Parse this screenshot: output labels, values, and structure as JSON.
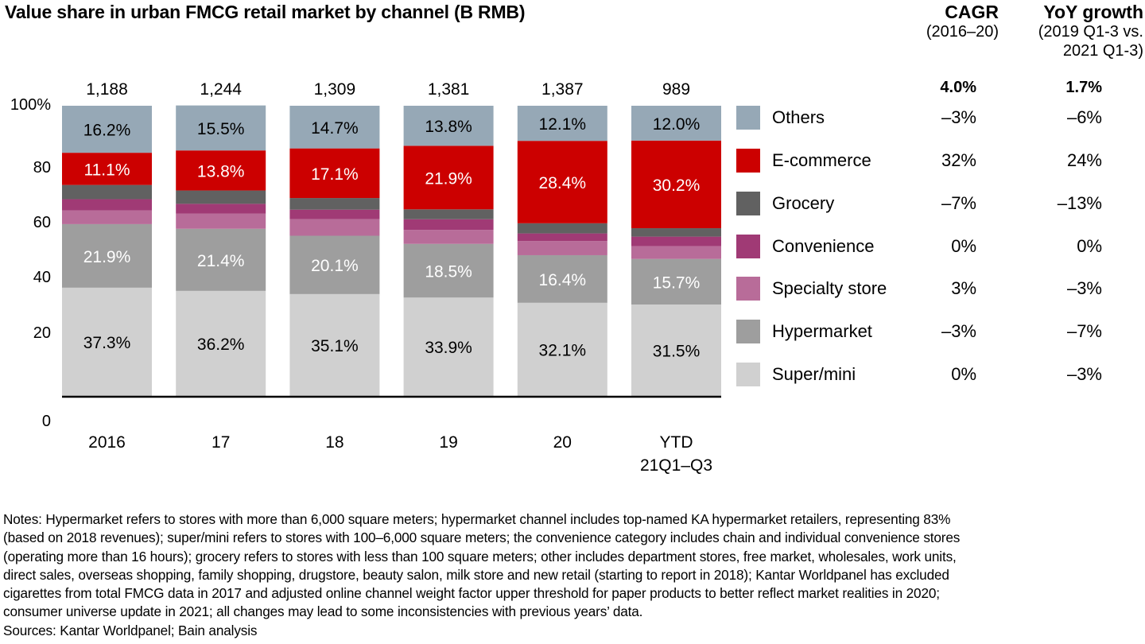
{
  "chart_data": {
    "type": "bar",
    "stacked": true,
    "title": "Value share in urban FMCG retail market by channel (B RMB)",
    "xlabel": "",
    "ylabel": "",
    "ylim": [
      0,
      100
    ],
    "y_ticks": [
      "0",
      "20",
      "40",
      "60",
      "80",
      "100%"
    ],
    "y_tick_values": [
      0,
      20,
      40,
      60,
      80,
      100
    ],
    "grid": false,
    "categories": [
      "2016",
      "17",
      "18",
      "19",
      "20",
      "YTD\n21Q1–Q3"
    ],
    "totals": [
      "1,188",
      "1,244",
      "1,309",
      "1,381",
      "1,387",
      "989"
    ],
    "series": [
      {
        "name": "Super/mini",
        "color": "#D0D0D0",
        "label_color": "#000000",
        "values": [
          37.3,
          36.2,
          35.1,
          33.9,
          32.1,
          31.5
        ],
        "labels": [
          "37.3%",
          "36.2%",
          "35.1%",
          "33.9%",
          "32.1%",
          "31.5%"
        ]
      },
      {
        "name": "Hypermarket",
        "color": "#9E9E9E",
        "label_color": "#FFFFFF",
        "values": [
          21.9,
          21.4,
          20.1,
          18.5,
          16.4,
          15.7
        ],
        "labels": [
          "21.9%",
          "21.4%",
          "20.1%",
          "18.5%",
          "16.4%",
          "15.7%"
        ]
      },
      {
        "name": "Specialty store",
        "color": "#B86C99",
        "label_color": "#FFFFFF",
        "values": [
          4.7,
          5.2,
          5.7,
          4.8,
          4.9,
          4.4
        ],
        "labels": [
          "",
          "",
          "",
          "",
          "",
          ""
        ],
        "values_estimated": true
      },
      {
        "name": "Convenience",
        "color": "#A03A75",
        "label_color": "#FFFFFF",
        "values": [
          3.9,
          3.4,
          3.3,
          3.7,
          2.6,
          3.3
        ],
        "labels": [
          "",
          "",
          "",
          "",
          "",
          ""
        ],
        "values_estimated": true
      },
      {
        "name": "Grocery",
        "color": "#616161",
        "label_color": "#FFFFFF",
        "values": [
          4.9,
          4.6,
          4.0,
          3.4,
          3.5,
          2.9
        ],
        "labels": [
          "",
          "",
          "",
          "",
          "",
          ""
        ],
        "values_estimated": true
      },
      {
        "name": "E-commerce",
        "color": "#CC0000",
        "label_color": "#FFFFFF",
        "values": [
          11.1,
          13.8,
          17.1,
          21.9,
          28.4,
          30.2
        ],
        "labels": [
          "11.1%",
          "13.8%",
          "17.1%",
          "21.9%",
          "28.4%",
          "30.2%"
        ]
      },
      {
        "name": "Others",
        "color": "#96A8B6",
        "label_color": "#000000",
        "values": [
          16.2,
          15.5,
          14.7,
          13.8,
          12.1,
          12.0
        ],
        "labels": [
          "16.2%",
          "15.5%",
          "14.7%",
          "13.8%",
          "12.1%",
          "12.0%"
        ]
      }
    ],
    "legend_position": "right",
    "side_table": {
      "columns": [
        {
          "title": "CAGR",
          "subtitle": [
            "(2016–20)"
          ],
          "total": "4.0%"
        },
        {
          "title": "YoY growth",
          "subtitle": [
            "(2019 Q1-3 vs.",
            "2021 Q1-3)"
          ],
          "total": "1.7%"
        }
      ],
      "rows": [
        {
          "name": "Others",
          "color": "#96A8B6",
          "cagr": "–3%",
          "yoy": "–6%"
        },
        {
          "name": "E-commerce",
          "color": "#CC0000",
          "cagr": "32%",
          "yoy": "24%"
        },
        {
          "name": "Grocery",
          "color": "#616161",
          "cagr": "–7%",
          "yoy": "–13%"
        },
        {
          "name": "Convenience",
          "color": "#A03A75",
          "cagr": "0%",
          "yoy": "0%"
        },
        {
          "name": "Specialty store",
          "color": "#B86C99",
          "cagr": "3%",
          "yoy": "–3%"
        },
        {
          "name": "Hypermarket",
          "color": "#9E9E9E",
          "cagr": "–3%",
          "yoy": "–7%"
        },
        {
          "name": "Super/mini",
          "color": "#D0D0D0",
          "cagr": "0%",
          "yoy": "–3%"
        }
      ]
    }
  },
  "notes": {
    "lines": [
      "Notes: Hypermarket refers to stores with more than 6,000 square meters; hypermarket channel includes top-named KA hypermarket retailers, representing 83%",
      "(based on 2018 revenues); super/mini refers to stores with 100–6,000 square meters; the convenience category includes chain and individual convenience stores",
      "(operating more than 16 hours); grocery refers to stores with less than 100 square meters; other includes department stores, free market, wholesales, work units,",
      "direct sales, overseas shopping, family shopping, drugstore, beauty salon, milk store and new retail (starting to report in 2018); Kantar Worldpanel has excluded",
      "cigarettes from total FMCG data in 2017 and adjusted online channel weight factor upper threshold for paper products to better reflect market realities in 2020;",
      "consumer universe update in 2021; all changes may lead to some inconsistencies with previous years’ data."
    ],
    "sources": "Sources: Kantar Worldpanel; Bain analysis"
  }
}
